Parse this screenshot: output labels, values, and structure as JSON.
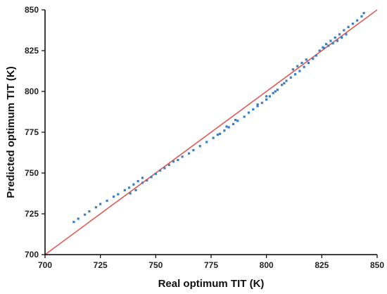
{
  "chart_data": {
    "type": "scatter",
    "xlabel": "Real optimum TIT (K)",
    "ylabel": "Predicted optimum TIT (K)",
    "xlim": [
      700,
      850
    ],
    "ylim": [
      700,
      850
    ],
    "x_ticks": [
      "700",
      "725",
      "750",
      "775",
      "800",
      "825",
      "850"
    ],
    "y_ticks": [
      "700",
      "725",
      "750",
      "775",
      "800",
      "825",
      "850"
    ],
    "grid": false,
    "legend": "none",
    "point_color": "#3a7fc4",
    "reference_line": {
      "type": "y = x",
      "color": "#e05a55",
      "from": [
        700,
        700
      ],
      "to": [
        850,
        850
      ]
    },
    "points": [
      [
        713,
        720
      ],
      [
        715,
        722
      ],
      [
        718,
        724.5
      ],
      [
        720,
        726.5
      ],
      [
        723,
        729
      ],
      [
        725,
        731
      ],
      [
        728,
        733
      ],
      [
        731,
        735.5
      ],
      [
        733,
        737
      ],
      [
        736,
        739.5
      ],
      [
        738,
        741
      ],
      [
        740,
        743
      ],
      [
        742,
        745
      ],
      [
        744,
        747
      ],
      [
        738.5,
        737.5
      ],
      [
        741,
        739.5
      ],
      [
        744,
        744
      ],
      [
        746,
        745.5
      ],
      [
        748,
        747.5
      ],
      [
        750,
        749.5
      ],
      [
        752,
        751.5
      ],
      [
        754,
        753
      ],
      [
        756,
        755
      ],
      [
        758,
        757
      ],
      [
        760,
        758
      ],
      [
        762,
        760
      ],
      [
        765,
        762
      ],
      [
        767,
        764
      ],
      [
        770,
        766.5
      ],
      [
        773,
        769
      ],
      [
        776,
        771.5
      ],
      [
        779,
        774
      ],
      [
        781,
        776
      ],
      [
        783,
        778
      ],
      [
        785,
        780
      ],
      [
        787,
        782
      ],
      [
        790,
        784.5
      ],
      [
        792,
        787
      ],
      [
        794,
        789
      ],
      [
        796,
        791
      ],
      [
        798,
        793
      ],
      [
        800,
        795
      ],
      [
        801.5,
        797
      ],
      [
        803,
        799
      ],
      [
        805,
        801
      ],
      [
        807,
        804
      ],
      [
        809,
        806.5
      ],
      [
        811,
        808.5
      ],
      [
        813,
        810.5
      ],
      [
        815,
        812.5
      ],
      [
        817,
        815
      ],
      [
        819,
        817.5
      ],
      [
        821,
        820
      ],
      [
        822.5,
        822
      ],
      [
        824,
        825
      ],
      [
        825.5,
        827
      ],
      [
        827,
        829
      ],
      [
        829,
        831
      ],
      [
        831,
        833
      ],
      [
        833,
        835
      ],
      [
        835,
        837.5
      ],
      [
        837,
        839.5
      ],
      [
        839,
        841.5
      ],
      [
        841,
        843.5
      ],
      [
        843,
        846
      ],
      [
        844,
        848
      ],
      [
        812,
        813.5
      ],
      [
        814,
        815.5
      ],
      [
        816,
        817.5
      ],
      [
        818,
        819.5
      ],
      [
        826,
        826.5
      ],
      [
        828,
        828
      ],
      [
        830,
        829.5
      ],
      [
        832,
        831
      ],
      [
        834,
        833
      ],
      [
        836,
        835
      ],
      [
        778,
        773.5
      ],
      [
        782,
        778.5
      ],
      [
        786,
        782.5
      ],
      [
        796,
        792
      ],
      [
        800,
        797
      ],
      [
        804,
        800
      ],
      [
        808,
        805
      ]
    ]
  }
}
